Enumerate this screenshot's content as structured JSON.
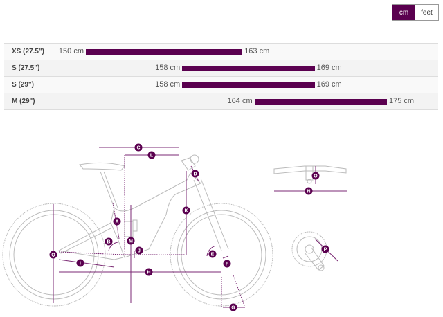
{
  "units": {
    "options": [
      "cm",
      "feet"
    ],
    "selected": "cm"
  },
  "accent_color": "#5a004f",
  "size_chart": {
    "unit": "cm",
    "rows": [
      {
        "size": "XS (27.5\")",
        "min": 150,
        "max": 163,
        "min_label": "150 cm",
        "max_label": "163 cm"
      },
      {
        "size": "S (27.5\")",
        "min": 158,
        "max": 169,
        "min_label": "158 cm",
        "max_label": "169 cm"
      },
      {
        "size": "S (29\")",
        "min": 158,
        "max": 169,
        "min_label": "158 cm",
        "max_label": "169 cm"
      },
      {
        "size": "M (29\")",
        "min": 164,
        "max": 175,
        "min_label": "164 cm",
        "max_label": "175 cm"
      }
    ]
  },
  "diagram": {
    "labels": [
      "A",
      "B",
      "C",
      "D",
      "E",
      "F",
      "G",
      "H",
      "I",
      "J",
      "K",
      "L",
      "M",
      "N",
      "O",
      "P",
      "Q"
    ]
  }
}
